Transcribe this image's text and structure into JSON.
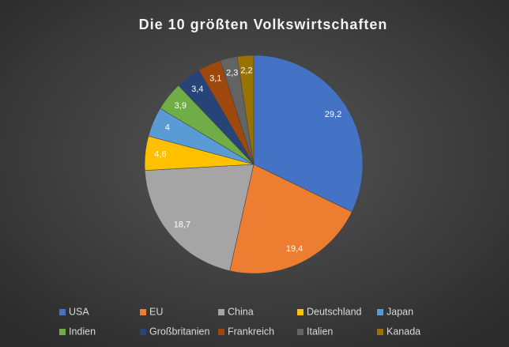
{
  "chart_data": {
    "type": "pie",
    "title": "Die 10 größten Volkswirtschaften",
    "categories": [
      "USA",
      "EU",
      "China",
      "Deutschland",
      "Japan",
      "Indien",
      "Großbritanien",
      "Frankreich",
      "Italien",
      "Kanada"
    ],
    "values": [
      29.2,
      19.4,
      18.7,
      4.6,
      4,
      3.9,
      3.4,
      3.1,
      2.3,
      2.2
    ],
    "value_labels": [
      "29,2",
      "19,4",
      "18,7",
      "4,6",
      "4",
      "3,9",
      "3,4",
      "3,1",
      "2,3",
      "2,2"
    ],
    "colors": [
      "#4472c4",
      "#ed7d31",
      "#a5a5a5",
      "#ffc000",
      "#5b9bd5",
      "#70ad47",
      "#264478",
      "#9e480e",
      "#636363",
      "#997300"
    ],
    "legend": "bottom"
  }
}
